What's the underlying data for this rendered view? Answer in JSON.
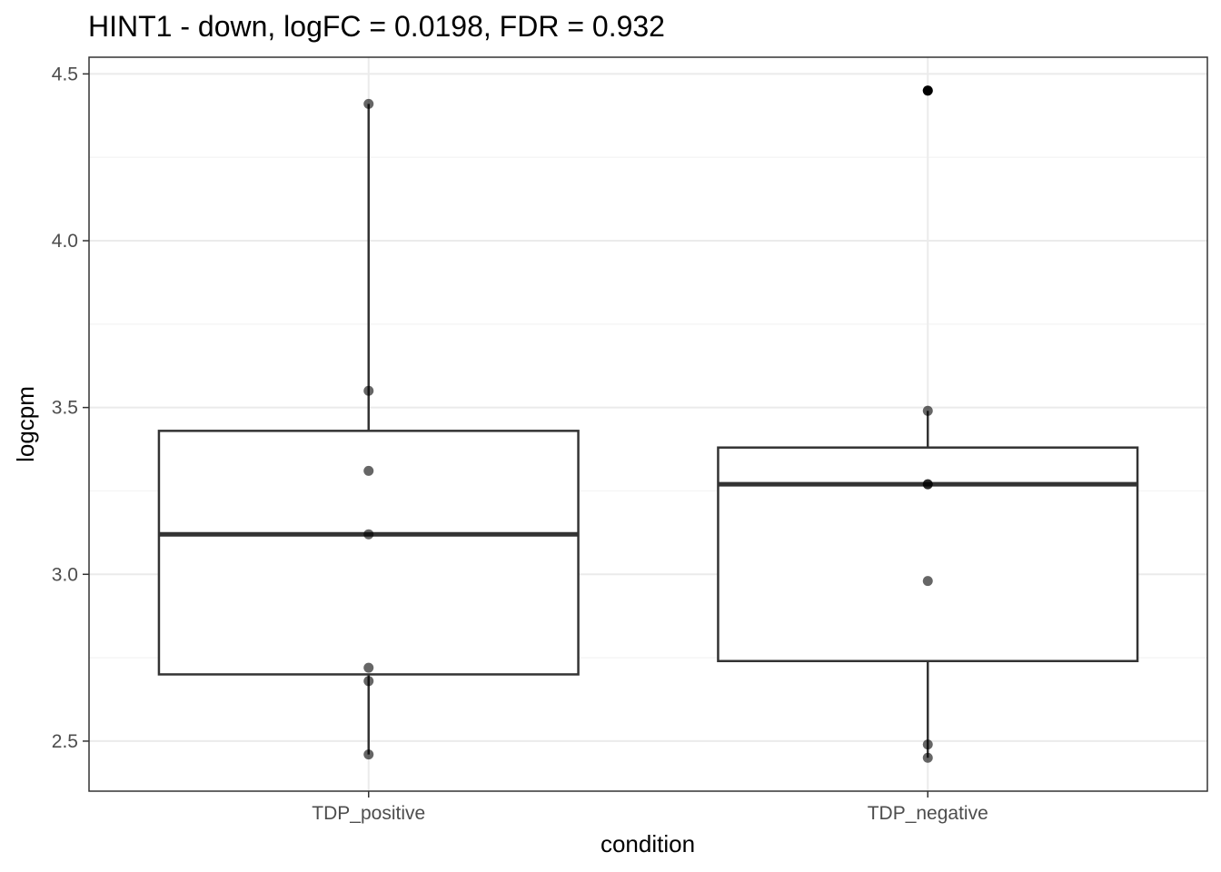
{
  "chart_data": {
    "type": "boxplot",
    "title": "HINT1 - down, logFC = 0.0198, FDR = 0.932",
    "xlabel": "condition",
    "ylabel": "logcpm",
    "categories": [
      "TDP_positive",
      "TDP_negative"
    ],
    "ylim": [
      2.35,
      4.55
    ],
    "yticks": [
      2.5,
      3.0,
      3.5,
      4.0,
      4.5
    ],
    "ytick_labels": [
      "2.5",
      "3.0",
      "3.5",
      "4.0",
      "4.5"
    ],
    "grid": true,
    "boxes": [
      {
        "category": "TDP_positive",
        "whisker_low": 2.46,
        "q1": 2.7,
        "median": 3.12,
        "q3": 3.43,
        "whisker_high": 4.41
      },
      {
        "category": "TDP_negative",
        "whisker_low": 2.45,
        "q1": 2.74,
        "median": 3.27,
        "q3": 3.38,
        "whisker_high": 3.49
      }
    ],
    "points": [
      {
        "category": "TDP_positive",
        "values": [
          4.41,
          3.55,
          3.31,
          3.12,
          2.72,
          2.68,
          2.46
        ]
      },
      {
        "category": "TDP_negative",
        "values": [
          4.45,
          3.49,
          3.27,
          3.27,
          2.98,
          2.49,
          2.45
        ]
      }
    ],
    "outliers": [
      {
        "category": "TDP_negative",
        "value": 4.45
      }
    ],
    "colors": {
      "box_stroke": "#333333",
      "point_fill": "#000000",
      "grid_major": "#ebebeb",
      "grid_minor": "#f3f3f3",
      "panel_border": "#333333"
    }
  }
}
